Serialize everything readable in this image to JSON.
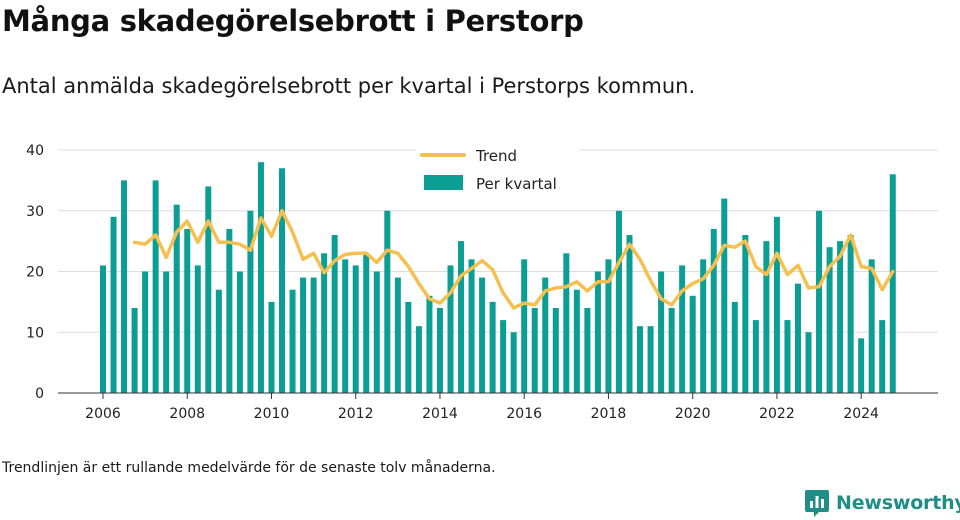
{
  "title": "Många skadegörelsebrott i Perstorp",
  "subtitle": "Antal anmälda skadegörelsebrott per kvartal i Perstorps kommun.",
  "note": "Trendlinjen är ett rullande medelvärde för de senaste tolv månaderna.",
  "brand": {
    "name": "Newsworthy",
    "icon": "newsworthy-logo-icon",
    "color": "#1f8f86"
  },
  "colors": {
    "bar": "#0b9e94",
    "trend": "#f5c04f",
    "grid": "#dddddd",
    "axis": "#333333"
  },
  "chart_data": {
    "type": "bar",
    "xlabel": "",
    "ylabel": "",
    "ylim": [
      0,
      40
    ],
    "yticks": [
      "0",
      "10",
      "20",
      "30",
      "40"
    ],
    "xticks": [
      "2006",
      "2008",
      "2010",
      "2012",
      "2014",
      "2016",
      "2018",
      "2020",
      "2022",
      "2024"
    ],
    "grid": true,
    "legend_position": "top-center",
    "start": "2006 Q1",
    "series": [
      {
        "name": "Per kvartal",
        "type": "bar",
        "values": [
          21,
          29,
          35,
          14,
          20,
          35,
          20,
          31,
          27,
          21,
          34,
          17,
          27,
          20,
          30,
          38,
          15,
          37,
          17,
          19,
          19,
          23,
          26,
          22,
          21,
          23,
          20,
          30,
          19,
          15,
          11,
          16,
          14,
          21,
          25,
          22,
          19,
          15,
          12,
          10,
          22,
          14,
          19,
          14,
          23,
          17,
          14,
          20,
          22,
          30,
          26,
          11,
          11,
          20,
          14,
          21,
          16,
          22,
          27,
          32,
          15,
          26,
          12,
          25,
          29,
          12,
          18,
          10,
          30,
          24,
          25,
          26,
          9,
          22,
          12,
          36
        ]
      },
      {
        "name": "Trend",
        "type": "line",
        "values": [
          null,
          null,
          null,
          24.8,
          24.5,
          26.0,
          22.3,
          26.5,
          28.3,
          24.8,
          28.3,
          24.8,
          24.8,
          24.5,
          23.5,
          28.8,
          25.8,
          30.0,
          26.5,
          22.0,
          23.0,
          19.8,
          21.8,
          22.8,
          23.0,
          23.0,
          21.5,
          23.5,
          23.0,
          20.8,
          18.0,
          15.5,
          14.8,
          16.5,
          19.3,
          20.5,
          21.8,
          20.3,
          16.5,
          14.0,
          14.8,
          14.5,
          16.8,
          17.3,
          17.5,
          18.3,
          16.8,
          18.3,
          18.3,
          21.5,
          24.5,
          22.0,
          18.5,
          15.5,
          14.5,
          16.8,
          18.0,
          18.8,
          21.0,
          24.3,
          24.0,
          25.0,
          20.8,
          19.5,
          23.0,
          19.5,
          21.0,
          17.3,
          17.5,
          20.8,
          22.5,
          26.0,
          20.8,
          20.5,
          17.0,
          20.0
        ]
      }
    ]
  }
}
